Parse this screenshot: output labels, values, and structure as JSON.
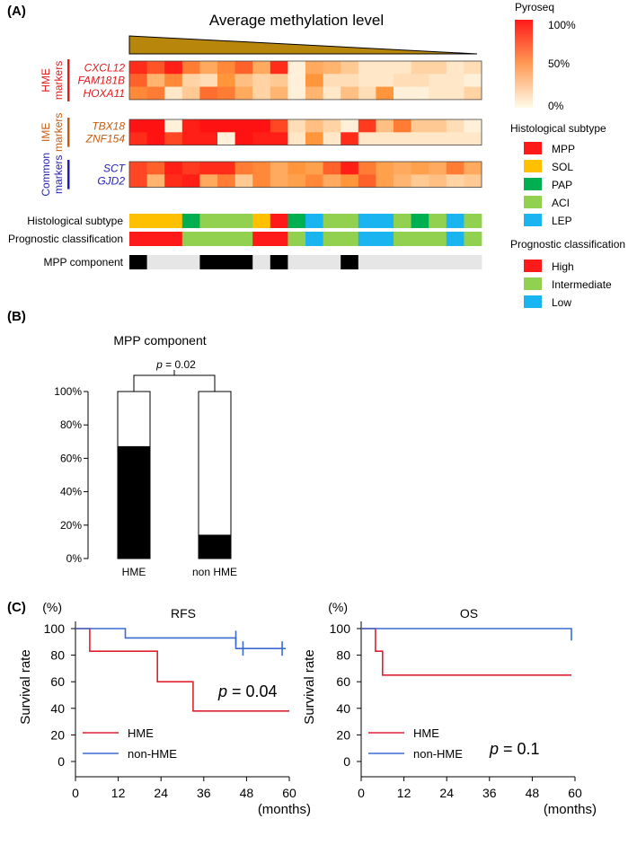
{
  "panelA": {
    "label": "(A)",
    "title": "Average methylation level",
    "groups": [
      {
        "name": "HME markers",
        "label_lines": [
          "HME",
          "markers"
        ],
        "color": "#e31a1c",
        "genes": [
          "CXCL12",
          "FAM181B",
          "HOXA11"
        ]
      },
      {
        "name": "IME markers",
        "label_lines": [
          "IME",
          "markers"
        ],
        "color": "#c55a11",
        "genes": [
          "TBX18",
          "ZNF154"
        ]
      },
      {
        "name": "Common markers",
        "label_lines": [
          "Common",
          "markers"
        ],
        "color": "#1f1fb4",
        "genes": [
          "SCT",
          "GJD2"
        ]
      }
    ],
    "columns": 20,
    "methylation": [
      [
        90,
        75,
        95,
        60,
        40,
        55,
        70,
        40,
        90,
        5,
        40,
        35,
        25,
        10,
        10,
        10,
        20,
        20,
        10,
        15
      ],
      [
        70,
        35,
        55,
        20,
        15,
        50,
        30,
        20,
        25,
        5,
        50,
        15,
        15,
        10,
        10,
        15,
        15,
        10,
        10,
        5
      ],
      [
        55,
        60,
        10,
        25,
        65,
        60,
        40,
        20,
        35,
        5,
        35,
        10,
        30,
        15,
        50,
        5,
        5,
        10,
        10,
        20
      ],
      [
        100,
        100,
        5,
        95,
        100,
        100,
        100,
        100,
        80,
        15,
        30,
        20,
        5,
        85,
        30,
        60,
        25,
        25,
        15,
        5
      ],
      [
        90,
        100,
        80,
        95,
        95,
        5,
        100,
        95,
        95,
        10,
        50,
        10,
        90,
        10,
        10,
        10,
        10,
        10,
        10,
        10
      ],
      [
        80,
        70,
        95,
        85,
        90,
        90,
        60,
        55,
        40,
        50,
        45,
        70,
        95,
        60,
        45,
        40,
        45,
        40,
        60,
        40
      ],
      [
        80,
        35,
        90,
        95,
        40,
        60,
        25,
        55,
        40,
        45,
        55,
        40,
        50,
        70,
        45,
        35,
        25,
        30,
        20,
        25
      ]
    ],
    "legend_pyroseq": {
      "title": "Pyroseq",
      "ticks": [
        "100%",
        "50%",
        "0%"
      ]
    },
    "tracks": {
      "histology": {
        "label": "Histological subtype",
        "values": [
          "SOL",
          "SOL",
          "SOL",
          "PAP",
          "ACI",
          "ACI",
          "ACI",
          "SOL",
          "MPP",
          "PAP",
          "LEP",
          "ACI",
          "ACI",
          "LEP",
          "LEP",
          "ACI",
          "PAP",
          "ACI",
          "LEP",
          "ACI"
        ]
      },
      "prognosis": {
        "label": "Prognostic classification",
        "values": [
          "High",
          "High",
          "High",
          "Intermediate",
          "Intermediate",
          "Intermediate",
          "Intermediate",
          "High",
          "High",
          "Intermediate",
          "Low",
          "Intermediate",
          "Intermediate",
          "Low",
          "Low",
          "Intermediate",
          "Intermediate",
          "Intermediate",
          "Low",
          "Intermediate"
        ]
      },
      "mpp": {
        "label": "MPP component",
        "values": [
          1,
          0,
          0,
          0,
          1,
          1,
          1,
          0,
          1,
          0,
          0,
          0,
          1,
          0,
          0,
          0,
          0,
          0,
          0,
          0
        ]
      }
    },
    "legend_histology": {
      "title": "Histological subtype",
      "items": [
        {
          "name": "MPP",
          "color": "#ff1a1a"
        },
        {
          "name": "SOL",
          "color": "#ffc000"
        },
        {
          "name": "PAP",
          "color": "#00b050"
        },
        {
          "name": "ACI",
          "color": "#92d050"
        },
        {
          "name": "LEP",
          "color": "#1ab4f0"
        }
      ]
    },
    "legend_prognosis": {
      "title": "Prognostic classification",
      "items": [
        {
          "name": "High",
          "color": "#ff1a1a"
        },
        {
          "name": "Intermediate",
          "color": "#92d050"
        },
        {
          "name": "Low",
          "color": "#1ab4f0"
        }
      ]
    },
    "mpp_colors": {
      "present": "#000000",
      "absent": "#e6e6e6"
    }
  },
  "chart_data": [
    {
      "type": "bar",
      "label": "(B)",
      "title": "MPP component",
      "categories": [
        "HME",
        "non HME"
      ],
      "series": [
        {
          "name": "MPP component present",
          "values": [
            67,
            14
          ],
          "color": "#000000"
        },
        {
          "name": "MPP component absent",
          "values": [
            33,
            86
          ],
          "color": "#ffffff"
        }
      ],
      "ylim": [
        0,
        100
      ],
      "yticks": [
        "0%",
        "20%",
        "40%",
        "60%",
        "80%",
        "100%"
      ],
      "annotation": {
        "p_label": "p",
        "p_rest": " = 0.02"
      }
    },
    {
      "type": "line",
      "step": true,
      "label": "(C)",
      "title": "RFS",
      "xlabel": "(months)",
      "ylabel": "Survival rate",
      "yunit": "(%)",
      "xlim": [
        0,
        60
      ],
      "ylim": [
        0,
        100
      ],
      "xticks": [
        0,
        12,
        24,
        36,
        48,
        60
      ],
      "yticks": [
        0,
        20,
        40,
        60,
        80,
        100
      ],
      "series": [
        {
          "name": "HME",
          "color": "#e0202e",
          "x": [
            0,
            4,
            4,
            23,
            23,
            33,
            33,
            60
          ],
          "y": [
            100,
            100,
            83,
            83,
            60,
            60,
            38,
            38
          ],
          "censors": []
        },
        {
          "name": "non-HME",
          "color": "#3a6cd0",
          "x": [
            0,
            14,
            14,
            45,
            45,
            59
          ],
          "y": [
            100,
            100,
            93,
            93,
            85,
            85
          ],
          "censors": [
            [
              45,
              93
            ],
            [
              47,
              85
            ],
            [
              58,
              85
            ]
          ]
        }
      ],
      "annotation": {
        "p_label": "p",
        "p_rest": " = 0.04"
      }
    },
    {
      "type": "line",
      "step": true,
      "title": "OS",
      "xlabel": "(months)",
      "ylabel": "Survival rate",
      "yunit": "(%)",
      "xlim": [
        0,
        60
      ],
      "ylim": [
        0,
        100
      ],
      "xticks": [
        0,
        12,
        24,
        36,
        48,
        60
      ],
      "yticks": [
        0,
        20,
        40,
        60,
        80,
        100
      ],
      "series": [
        {
          "name": "HME",
          "color": "#e0202e",
          "x": [
            0,
            4,
            4,
            6,
            6,
            59
          ],
          "y": [
            100,
            100,
            83,
            83,
            65,
            65
          ],
          "censors": []
        },
        {
          "name": "non-HME",
          "color": "#3a6cd0",
          "x": [
            0,
            59,
            59
          ],
          "y": [
            100,
            100,
            91
          ],
          "censors": []
        }
      ],
      "annotation": {
        "p_label": "p",
        "p_rest": " = 0.1"
      }
    }
  ]
}
